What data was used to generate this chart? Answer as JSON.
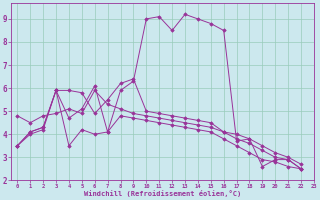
{
  "xlabel": "Windchill (Refroidissement éolien,°C)",
  "bg_color": "#cce8ee",
  "line_color": "#993399",
  "grid_color": "#99ccbb",
  "xlim": [
    -0.5,
    23
  ],
  "ylim": [
    2.0,
    9.7
  ],
  "yticks": [
    2,
    3,
    4,
    5,
    6,
    7,
    8,
    9
  ],
  "xticks": [
    0,
    1,
    2,
    3,
    4,
    5,
    6,
    7,
    8,
    9,
    10,
    11,
    12,
    13,
    14,
    15,
    16,
    17,
    18,
    19,
    20,
    21,
    22,
    23
  ],
  "series": [
    [
      3.5,
      4.1,
      4.3,
      5.9,
      4.7,
      5.1,
      6.1,
      4.1,
      5.9,
      6.3,
      9.0,
      9.1,
      8.5,
      9.2,
      9.0,
      8.8,
      8.5,
      3.7,
      3.8,
      2.6,
      2.9,
      2.9,
      2.5
    ],
    [
      4.8,
      4.5,
      4.8,
      4.9,
      5.1,
      4.9,
      5.9,
      5.3,
      5.1,
      4.9,
      4.8,
      4.7,
      4.6,
      4.5,
      4.4,
      4.3,
      4.1,
      4.0,
      3.8,
      3.5,
      3.2,
      3.0,
      2.7
    ],
    [
      3.5,
      4.1,
      4.3,
      5.9,
      3.5,
      4.2,
      4.0,
      4.1,
      4.8,
      4.7,
      4.6,
      4.5,
      4.4,
      4.3,
      4.2,
      4.1,
      3.8,
      3.5,
      3.2,
      2.9,
      2.8,
      2.6,
      2.5
    ],
    [
      3.5,
      4.0,
      4.2,
      5.9,
      5.9,
      5.8,
      4.9,
      5.5,
      6.2,
      6.4,
      5.0,
      4.9,
      4.8,
      4.7,
      4.6,
      4.5,
      4.1,
      3.8,
      3.6,
      3.3,
      3.0,
      2.9,
      2.5
    ]
  ],
  "x_values": [
    0,
    1,
    2,
    3,
    4,
    5,
    6,
    7,
    8,
    9,
    10,
    11,
    12,
    13,
    14,
    15,
    16,
    17,
    18,
    19,
    20,
    21,
    22
  ]
}
